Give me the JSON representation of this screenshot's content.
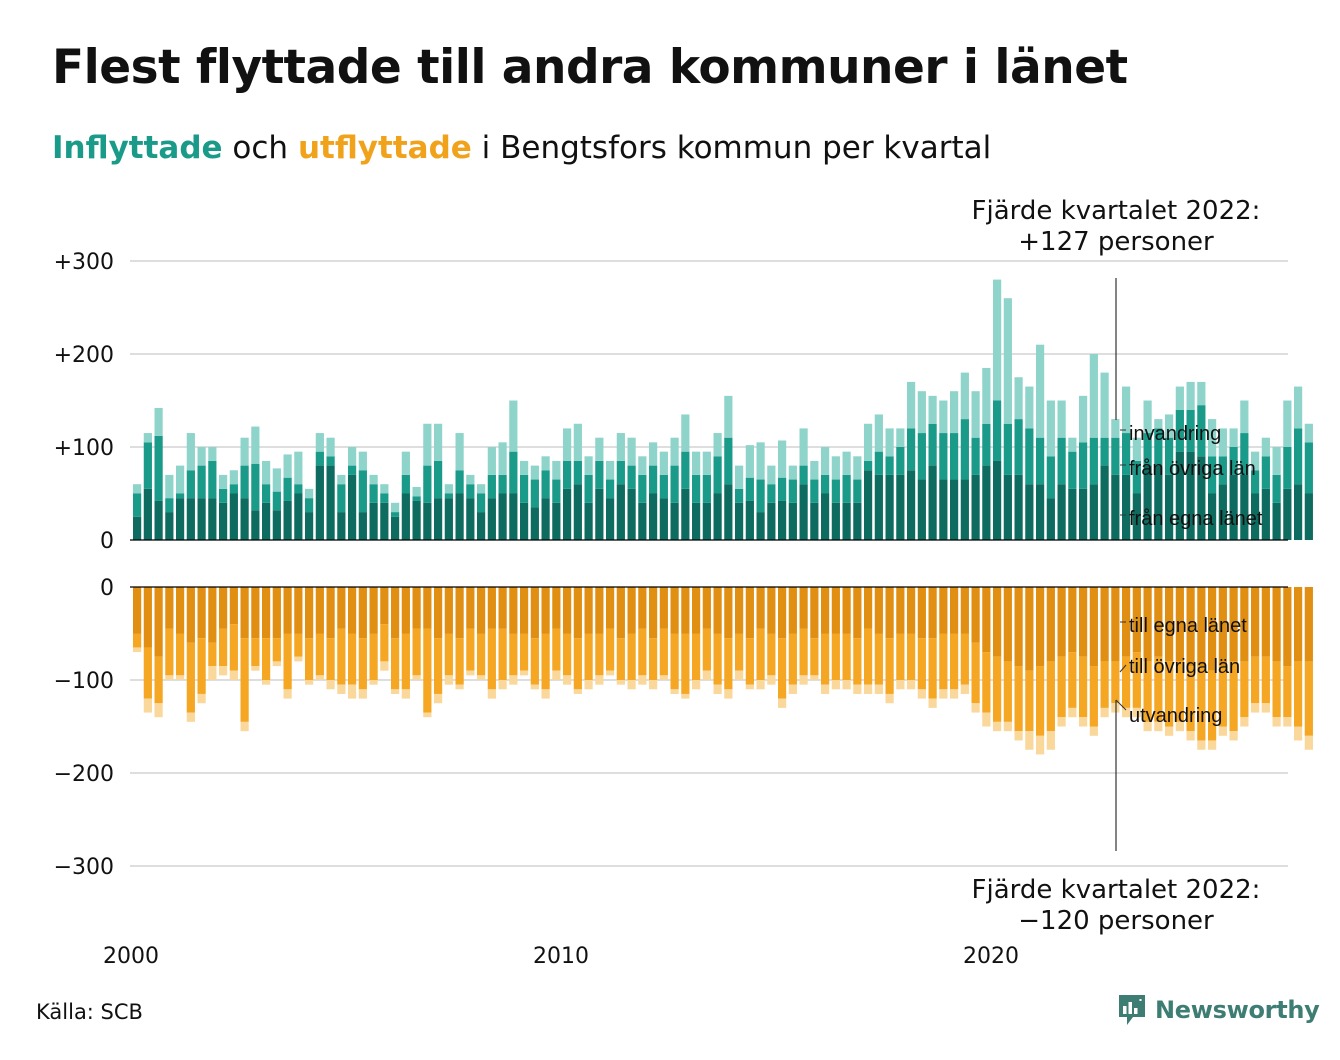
{
  "header": {
    "title": "Flest flyttade till andra kommuner i länet",
    "subtitle_in": "Inflyttade",
    "subtitle_mid": " och ",
    "subtitle_out": "utflyttade",
    "subtitle_rest": " i Bengtsfors kommun per kvartal"
  },
  "footer": {
    "source": "Källa: SCB",
    "brand": "Newsworthy"
  },
  "colors": {
    "in_own": "#0d6c5f",
    "in_other": "#1a9a89",
    "in_immig": "#8fd4ca",
    "out_own": "#e08f12",
    "out_other": "#f5a623",
    "out_emig": "#fad79a",
    "grid": "#dedede",
    "axis": "#000000"
  },
  "icons": {
    "brand": "newsworthy-logo-icon"
  },
  "chart_data": {
    "type": "bar",
    "stacked": true,
    "x_start": "2000 Q1",
    "x_ticks": [
      "2000",
      "2010",
      "2020"
    ],
    "y_ticks_top": [
      "+300",
      "+200",
      "+100",
      "0"
    ],
    "y_ticks_bottom": [
      "0",
      "−100",
      "−200",
      "−300"
    ],
    "ylim_top": [
      0,
      300
    ],
    "ylim_bottom": [
      -300,
      0
    ],
    "grid": true,
    "series_in": [
      {
        "name": "från egna länet",
        "color": "#0d6c5f",
        "values": [
          25,
          55,
          42,
          30,
          45,
          45,
          45,
          45,
          40,
          50,
          45,
          32,
          40,
          32,
          42,
          50,
          30,
          80,
          80,
          30,
          70,
          30,
          40,
          40,
          25,
          50,
          42,
          40,
          45,
          45,
          50,
          45,
          30,
          45,
          50,
          50,
          40,
          35,
          45,
          40,
          55,
          60,
          40,
          55,
          45,
          60,
          55,
          40,
          50,
          45,
          40,
          55,
          40,
          40,
          50,
          60,
          40,
          42,
          30,
          40,
          42,
          40,
          60,
          40,
          50,
          40,
          40,
          40,
          75,
          70,
          70,
          70,
          75,
          65,
          80,
          65,
          65,
          65,
          70,
          80,
          85,
          70,
          70,
          60,
          60,
          45,
          60,
          55,
          55,
          60,
          80,
          70,
          70,
          50,
          80,
          80,
          70,
          95,
          95,
          90,
          50,
          60,
          70,
          70,
          50,
          55,
          40,
          55,
          60,
          50
        ]
      },
      {
        "name": "från övriga län",
        "color": "#1a9a89",
        "values": [
          25,
          50,
          70,
          15,
          5,
          30,
          35,
          40,
          15,
          10,
          35,
          50,
          20,
          20,
          25,
          10,
          15,
          15,
          10,
          30,
          10,
          45,
          20,
          10,
          5,
          20,
          5,
          40,
          40,
          5,
          25,
          15,
          20,
          25,
          20,
          45,
          30,
          30,
          30,
          25,
          30,
          25,
          30,
          30,
          20,
          25,
          25,
          30,
          30,
          25,
          40,
          40,
          30,
          30,
          40,
          50,
          15,
          25,
          35,
          20,
          25,
          25,
          20,
          25,
          20,
          25,
          30,
          25,
          10,
          25,
          20,
          30,
          45,
          50,
          45,
          50,
          50,
          65,
          40,
          45,
          65,
          55,
          60,
          60,
          50,
          45,
          50,
          40,
          50,
          50,
          30,
          40,
          45,
          35,
          35,
          40,
          40,
          45,
          45,
          55,
          40,
          30,
          30,
          45,
          25,
          35,
          30,
          45,
          60,
          55
        ]
      },
      {
        "name": "invandring",
        "color": "#8fd4ca",
        "values": [
          10,
          10,
          30,
          25,
          30,
          40,
          20,
          15,
          15,
          15,
          30,
          40,
          25,
          25,
          25,
          35,
          10,
          20,
          20,
          10,
          20,
          20,
          10,
          10,
          10,
          25,
          10,
          45,
          40,
          10,
          40,
          10,
          10,
          30,
          35,
          55,
          15,
          15,
          15,
          20,
          35,
          40,
          20,
          25,
          20,
          30,
          30,
          20,
          25,
          25,
          30,
          40,
          25,
          25,
          25,
          45,
          25,
          35,
          40,
          20,
          40,
          15,
          40,
          20,
          30,
          25,
          25,
          25,
          40,
          40,
          30,
          20,
          50,
          45,
          30,
          35,
          45,
          50,
          50,
          60,
          130,
          135,
          45,
          45,
          100,
          60,
          40,
          15,
          50,
          90,
          70,
          20,
          50,
          25,
          35,
          10,
          25,
          25,
          30,
          25,
          40,
          30,
          20,
          35,
          20,
          20,
          30,
          50,
          45,
          20
        ]
      }
    ],
    "series_out": [
      {
        "name": "till egna länet",
        "color": "#e08f12",
        "values": [
          -50,
          -65,
          -75,
          -45,
          -50,
          -60,
          -55,
          -60,
          -45,
          -40,
          -55,
          -55,
          -55,
          -55,
          -50,
          -50,
          -55,
          -50,
          -55,
          -45,
          -50,
          -55,
          -50,
          -40,
          -55,
          -50,
          -45,
          -45,
          -55,
          -50,
          -55,
          -45,
          -50,
          -45,
          -45,
          -50,
          -50,
          -55,
          -50,
          -45,
          -50,
          -55,
          -50,
          -50,
          -45,
          -55,
          -50,
          -45,
          -55,
          -45,
          -50,
          -50,
          -50,
          -45,
          -50,
          -55,
          -50,
          -55,
          -45,
          -50,
          -55,
          -50,
          -45,
          -55,
          -50,
          -50,
          -50,
          -55,
          -45,
          -50,
          -55,
          -50,
          -50,
          -55,
          -55,
          -50,
          -50,
          -50,
          -60,
          -70,
          -75,
          -80,
          -85,
          -90,
          -85,
          -80,
          -75,
          -70,
          -75,
          -85,
          -80,
          -80,
          -75,
          -70,
          -80,
          -75,
          -80,
          -80,
          -85,
          -85,
          -90,
          -85,
          -80,
          -80,
          -75,
          -75,
          -80,
          -85,
          -80,
          -80
        ]
      },
      {
        "name": "till övriga län",
        "color": "#f5a623",
        "values": [
          -15,
          -55,
          -50,
          -50,
          -45,
          -75,
          -60,
          -25,
          -40,
          -50,
          -90,
          -30,
          -45,
          -25,
          -60,
          -25,
          -45,
          -45,
          -45,
          -60,
          -55,
          -55,
          -50,
          -40,
          -55,
          -60,
          -50,
          -90,
          -60,
          -45,
          -50,
          -45,
          -45,
          -65,
          -55,
          -45,
          -40,
          -50,
          -60,
          -45,
          -45,
          -55,
          -50,
          -45,
          -45,
          -45,
          -50,
          -50,
          -45,
          -50,
          -60,
          -65,
          -50,
          -45,
          -55,
          -55,
          -40,
          -50,
          -55,
          -45,
          -65,
          -55,
          -50,
          -40,
          -55,
          -50,
          -50,
          -50,
          -60,
          -55,
          -60,
          -50,
          -50,
          -55,
          -65,
          -60,
          -60,
          -55,
          -65,
          -65,
          -70,
          -65,
          -70,
          -65,
          -75,
          -75,
          -65,
          -60,
          -65,
          -65,
          -50,
          -45,
          -55,
          -60,
          -65,
          -70,
          -70,
          -65,
          -70,
          -80,
          -75,
          -65,
          -75,
          -60,
          -50,
          -50,
          -60,
          -55,
          -70,
          -80
        ]
      },
      {
        "name": "utvandring",
        "color": "#fad79a",
        "values": [
          -5,
          -15,
          -15,
          -5,
          -5,
          -10,
          -10,
          -15,
          -10,
          -10,
          -10,
          -5,
          -5,
          -5,
          -10,
          -5,
          -5,
          -5,
          -10,
          -10,
          -15,
          -10,
          -5,
          -10,
          -5,
          -10,
          -5,
          -5,
          -10,
          -10,
          -5,
          -5,
          -5,
          -10,
          -10,
          -10,
          -5,
          -5,
          -10,
          -10,
          -10,
          -5,
          -10,
          -10,
          -5,
          -5,
          -10,
          -10,
          -10,
          -5,
          -5,
          -5,
          -10,
          -10,
          -10,
          -10,
          -10,
          -5,
          -10,
          -10,
          -10,
          -10,
          -10,
          -5,
          -10,
          -10,
          -10,
          -10,
          -10,
          -10,
          -10,
          -10,
          -10,
          -10,
          -10,
          -10,
          -10,
          -10,
          -10,
          -15,
          -10,
          -10,
          -10,
          -20,
          -20,
          -20,
          -10,
          -10,
          -10,
          -10,
          -10,
          -10,
          -10,
          -10,
          -10,
          -10,
          -10,
          -10,
          -10,
          -10,
          -10,
          -10,
          -10,
          -10,
          -10,
          -10,
          -10,
          -10,
          -15,
          -15
        ]
      }
    ],
    "annotations": [
      {
        "line1": "Fjärde kvartalet 2022:",
        "line2": "+127 personer"
      },
      {
        "line1": "Fjärde kvartalet 2022:",
        "line2": "−120 personer"
      }
    ]
  }
}
